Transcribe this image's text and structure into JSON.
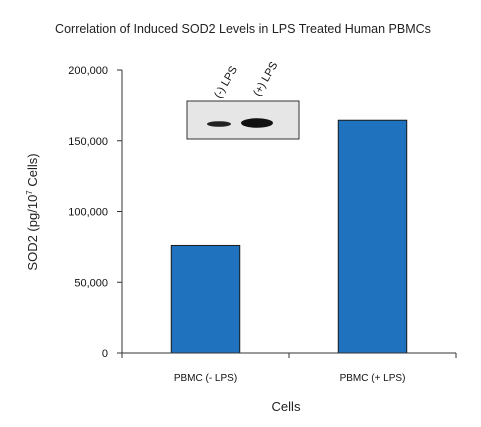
{
  "chart_data": {
    "type": "bar",
    "title": "Correlation of Induced SOD2 Levels in LPS Treated Human PBMCs",
    "xlabel": "Cells",
    "ylabel": {
      "prefix": "SOD2 (pg/10",
      "superscript": "7",
      "suffix": " Cells)"
    },
    "categories": [
      "PBMC (- LPS)",
      "PBMC (+ LPS)"
    ],
    "values": [
      76000,
      164500
    ],
    "ylim": [
      0,
      200000
    ],
    "yticks": [
      0,
      50000,
      100000,
      150000,
      200000
    ],
    "ytick_labels": [
      "0",
      "50,000",
      "100,000",
      "150,000",
      "200,000"
    ],
    "bar_color": "#1f73be",
    "grid": false,
    "inset": {
      "kind": "western-blot",
      "lane_labels": [
        "(-) LPS",
        "(+) LPS"
      ]
    }
  }
}
